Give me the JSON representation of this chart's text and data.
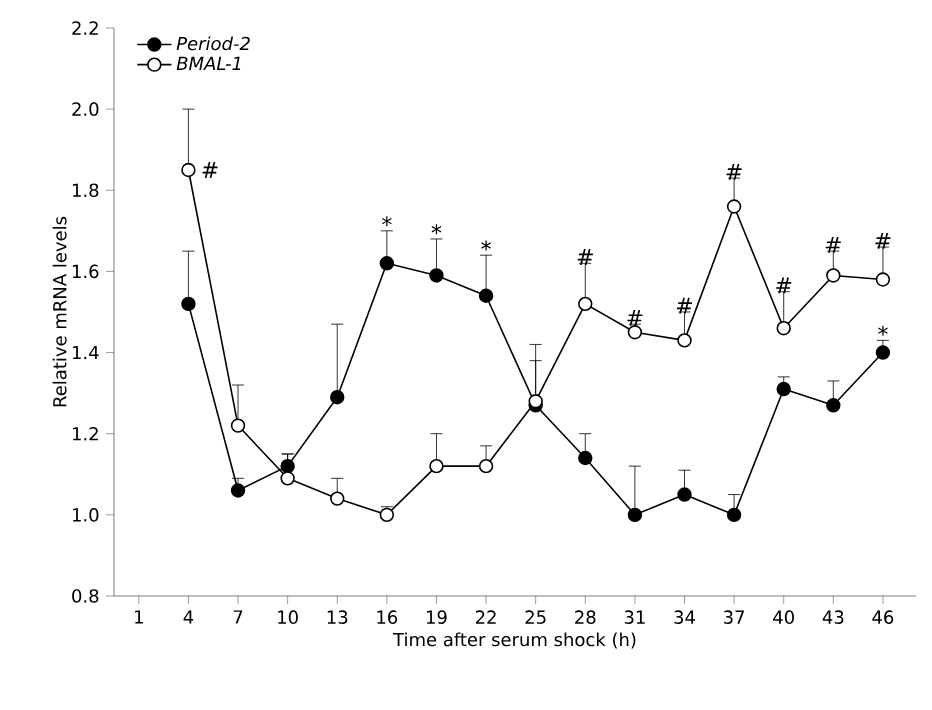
{
  "chart_data": {
    "type": "line",
    "xlabel": "Time after serum shock (h)",
    "ylabel": "Relative mRNA levels",
    "x": [
      4,
      7,
      10,
      13,
      16,
      19,
      22,
      25,
      28,
      31,
      34,
      37,
      40,
      43,
      46
    ],
    "series": [
      {
        "name": "Period-2",
        "color": "#000000",
        "values": [
          1.52,
          1.06,
          1.12,
          1.29,
          1.62,
          1.59,
          1.54,
          1.27,
          1.14,
          1.0,
          1.05,
          1.0,
          1.31,
          1.27,
          1.4
        ],
        "errors": [
          [
            1.52,
            1.65
          ],
          [
            1.06,
            1.09
          ],
          [
            1.12,
            1.15
          ],
          [
            1.29,
            1.47
          ],
          [
            1.62,
            1.7
          ],
          [
            1.59,
            1.68
          ],
          [
            1.54,
            1.64
          ],
          [
            1.27,
            1.38
          ],
          [
            1.14,
            1.2
          ],
          [
            1.0,
            1.12
          ],
          [
            1.05,
            1.11
          ],
          [
            1.0,
            1.05
          ],
          [
            1.31,
            1.34
          ],
          [
            1.27,
            1.33
          ],
          [
            1.4,
            1.43
          ]
        ]
      },
      {
        "name": "BMAL-1",
        "color": "#ffffff",
        "values": [
          1.85,
          1.22,
          1.09,
          1.04,
          1.0,
          1.12,
          1.12,
          1.28,
          1.52,
          1.45,
          1.43,
          1.76,
          1.46,
          1.59,
          1.58
        ],
        "errors": [
          [
            1.85,
            2.0
          ],
          [
            1.22,
            1.32
          ],
          [
            1.09,
            1.15
          ],
          [
            1.04,
            1.09
          ],
          [
            1.0,
            1.02
          ],
          [
            1.12,
            1.2
          ],
          [
            1.12,
            1.17
          ],
          [
            1.28,
            1.42
          ],
          [
            1.52,
            1.62
          ],
          [
            1.45,
            1.47
          ],
          [
            1.43,
            1.5
          ],
          [
            1.76,
            1.83
          ],
          [
            1.46,
            1.55
          ],
          [
            1.59,
            1.65
          ],
          [
            1.58,
            1.66
          ]
        ]
      }
    ],
    "xlim": [
      -0.5,
      48
    ],
    "ylim": [
      0.8,
      2.2
    ],
    "xticks": [
      1,
      4,
      7,
      10,
      13,
      16,
      19,
      22,
      25,
      28,
      31,
      34,
      37,
      40,
      43,
      46
    ],
    "yticks": [
      {
        "value": 0.8,
        "label": "0.8"
      },
      {
        "value": 1.0,
        "label": "1.0"
      },
      {
        "value": 1.2,
        "label": "1.2"
      },
      {
        "value": 1.4,
        "label": "1.4"
      },
      {
        "value": 1.6,
        "label": "1.6"
      },
      {
        "value": 1.8,
        "label": "1.8"
      },
      {
        "value": 2.0,
        "label": "2.0"
      },
      {
        "value": 2.2,
        "label": "2.2"
      }
    ],
    "marker": "circle",
    "line_style": "solid",
    "legend": "top left",
    "grid": false,
    "annotations": [
      {
        "text": "#",
        "x": 4,
        "y": 1.85
      },
      {
        "text": "*",
        "x": 16,
        "y": 1.7
      },
      {
        "text": "*",
        "x": 19,
        "y": 1.68
      },
      {
        "text": "*",
        "x": 22,
        "y": 1.64
      },
      {
        "text": "#",
        "x": 28,
        "y": 1.62
      },
      {
        "text": "#",
        "x": 31,
        "y": 1.47
      },
      {
        "text": "#",
        "x": 34,
        "y": 1.5
      },
      {
        "text": "#",
        "x": 37,
        "y": 1.83
      },
      {
        "text": "#",
        "x": 40,
        "y": 1.55
      },
      {
        "text": "#",
        "x": 43,
        "y": 1.65
      },
      {
        "text": "#",
        "x": 46,
        "y": 1.66
      },
      {
        "text": "*",
        "x": 46,
        "y": 1.43
      }
    ]
  }
}
